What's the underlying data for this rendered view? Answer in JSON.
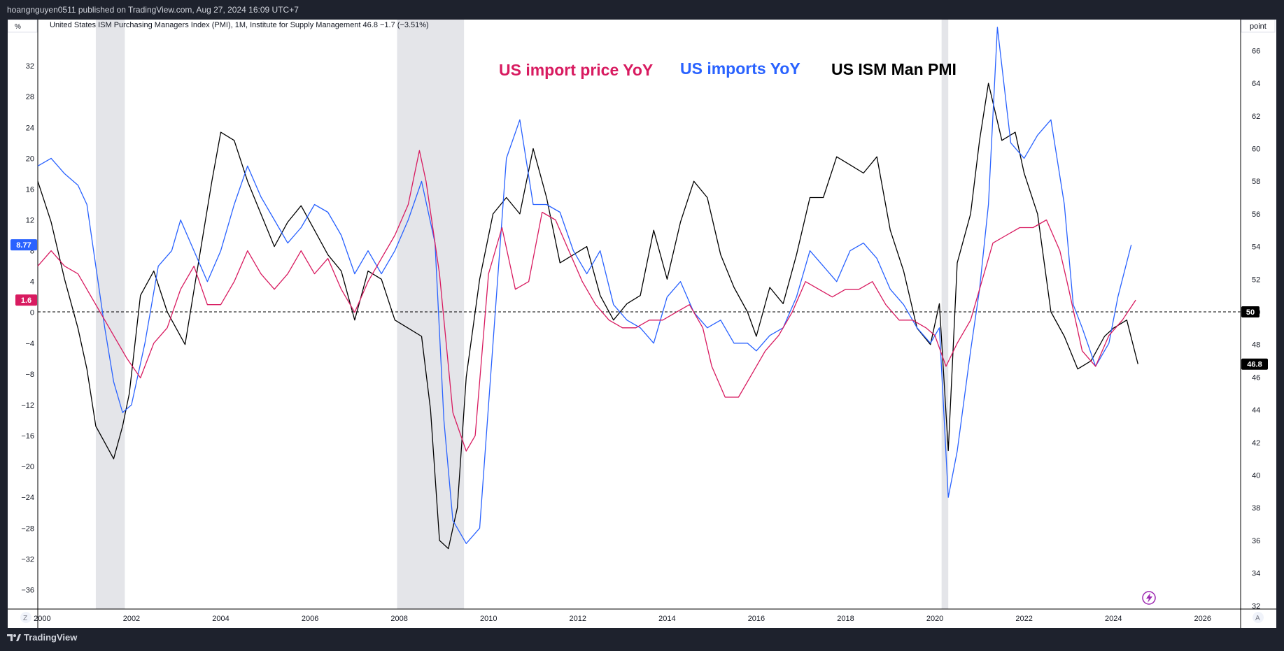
{
  "header": {
    "publisher_line": "hoangnguyen0511 published on TradingView.com, Aug 27, 2024 16:09 UTC+7",
    "legend_line": "United States ISM Purchasing Managers Index (PMI), 1M, Institute for Supply Management  46.8  −1.7 (−3.51%)",
    "left_unit_button": "%",
    "right_unit_button": "point",
    "log_button": "Z",
    "auto_button": "A"
  },
  "footer": {
    "brand": "TradingView"
  },
  "colors": {
    "pmi": "#000000",
    "imports": "#2962ff",
    "import_price": "#d81b60",
    "recession": "#e4e5e9"
  },
  "icons": {
    "brand": "tradingview-logo",
    "lightning": "lightning-icon"
  },
  "chart_data": {
    "type": "line",
    "title": "",
    "annotations": [
      {
        "text": "US import price YoY",
        "color": "#d81b60"
      },
      {
        "text": "US imports YoY",
        "color": "#2962ff"
      },
      {
        "text": "US ISM Man PMI",
        "color": "#000000"
      }
    ],
    "x_ticks": [
      "2000",
      "2002",
      "2004",
      "2006",
      "2008",
      "2010",
      "2012",
      "2014",
      "2016",
      "2018",
      "2020",
      "2022",
      "2024",
      "2026"
    ],
    "xlim": [
      1999.9,
      2026.85
    ],
    "left_axis": {
      "unit": "%",
      "ylim": [
        -38.5,
        38.0
      ],
      "ticks": [
        32,
        28,
        24,
        20,
        16,
        12,
        8,
        4,
        0,
        -4,
        -8,
        -12,
        -16,
        -20,
        -24,
        -28,
        -32,
        -36
      ]
    },
    "right_axis": {
      "unit": "point",
      "ylim": [
        31.8,
        67.9
      ],
      "ticks": [
        66,
        64,
        62,
        60,
        58,
        56,
        54,
        52,
        50,
        48,
        46,
        44,
        42,
        40,
        38,
        36,
        34,
        32
      ]
    },
    "reference_line": {
      "axis": "right",
      "value": 50,
      "label": "50"
    },
    "last_values": [
      {
        "label": "8.77",
        "axis": "left",
        "value": 8.77,
        "color": "#2962ff"
      },
      {
        "label": "1.6",
        "axis": "left",
        "value": 1.6,
        "color": "#d81b60"
      },
      {
        "label": "46.8",
        "axis": "right",
        "value": 46.8,
        "color": "#000000"
      }
    ],
    "recessions": [
      [
        2001.2,
        2001.85
      ],
      [
        2007.95,
        2009.45
      ],
      [
        2020.15,
        2020.3
      ]
    ],
    "series": [
      {
        "name": "US ISM Man PMI",
        "axis": "right",
        "color": "#000000",
        "x": [
          1999.9,
          2000.2,
          2000.5,
          2000.8,
          2001.0,
          2001.2,
          2001.4,
          2001.6,
          2001.8,
          2001.95,
          2002.2,
          2002.5,
          2002.8,
          2003.0,
          2003.2,
          2003.5,
          2003.8,
          2004.0,
          2004.3,
          2004.6,
          2004.9,
          2005.2,
          2005.5,
          2005.8,
          2006.1,
          2006.4,
          2006.7,
          2007.0,
          2007.3,
          2007.6,
          2007.9,
          2008.2,
          2008.5,
          2008.7,
          2008.9,
          2009.1,
          2009.3,
          2009.5,
          2009.8,
          2010.1,
          2010.4,
          2010.7,
          2011.0,
          2011.3,
          2011.6,
          2011.9,
          2012.2,
          2012.5,
          2012.8,
          2013.1,
          2013.4,
          2013.7,
          2014.0,
          2014.3,
          2014.6,
          2014.9,
          2015.2,
          2015.5,
          2015.8,
          2016.0,
          2016.3,
          2016.6,
          2016.9,
          2017.2,
          2017.5,
          2017.8,
          2018.1,
          2018.4,
          2018.7,
          2019.0,
          2019.3,
          2019.6,
          2019.9,
          2020.1,
          2020.3,
          2020.5,
          2020.8,
          2021.0,
          2021.2,
          2021.5,
          2021.8,
          2022.0,
          2022.3,
          2022.6,
          2022.9,
          2023.2,
          2023.5,
          2023.8,
          2024.0,
          2024.3,
          2024.55
        ],
        "y": [
          58.0,
          55.5,
          52.0,
          49.0,
          46.5,
          43.0,
          42.0,
          41.0,
          43.0,
          45.0,
          51.0,
          52.5,
          50.0,
          49.0,
          48.0,
          53.0,
          58.0,
          61.0,
          60.5,
          58.0,
          56.0,
          54.0,
          55.5,
          56.5,
          55.0,
          53.5,
          52.5,
          49.5,
          52.5,
          52.0,
          49.5,
          49.0,
          48.5,
          44.0,
          36.0,
          35.5,
          38.0,
          46.0,
          52.0,
          56.0,
          57.0,
          56.0,
          60.0,
          57.0,
          53.0,
          53.5,
          54.0,
          51.0,
          49.5,
          50.5,
          51.0,
          55.0,
          52.0,
          55.5,
          58.0,
          57.0,
          53.5,
          51.5,
          50.0,
          48.5,
          51.5,
          50.5,
          53.5,
          57.0,
          57.0,
          59.5,
          59.0,
          58.5,
          59.5,
          55.0,
          52.5,
          49.0,
          48.0,
          50.5,
          41.5,
          53.0,
          56.0,
          60.5,
          64.0,
          60.5,
          61.0,
          58.5,
          56.0,
          50.0,
          48.5,
          46.5,
          47.0,
          48.5,
          49.0,
          49.5,
          46.8
        ]
      },
      {
        "name": "US imports YoY",
        "axis": "left",
        "color": "#2962ff",
        "x": [
          1999.9,
          2000.2,
          2000.5,
          2000.8,
          2001.0,
          2001.2,
          2001.4,
          2001.6,
          2001.8,
          2002.0,
          2002.3,
          2002.6,
          2002.9,
          2003.1,
          2003.4,
          2003.7,
          2004.0,
          2004.3,
          2004.6,
          2004.9,
          2005.2,
          2005.5,
          2005.8,
          2006.1,
          2006.4,
          2006.7,
          2007.0,
          2007.3,
          2007.6,
          2007.9,
          2008.2,
          2008.5,
          2008.8,
          2009.0,
          2009.2,
          2009.5,
          2009.8,
          2010.0,
          2010.4,
          2010.7,
          2011.0,
          2011.3,
          2011.6,
          2011.9,
          2012.2,
          2012.5,
          2012.8,
          2013.1,
          2013.4,
          2013.7,
          2014.0,
          2014.3,
          2014.6,
          2014.9,
          2015.2,
          2015.5,
          2015.8,
          2016.0,
          2016.3,
          2016.6,
          2016.9,
          2017.2,
          2017.5,
          2017.8,
          2018.1,
          2018.4,
          2018.7,
          2019.0,
          2019.3,
          2019.6,
          2019.9,
          2020.1,
          2020.3,
          2020.5,
          2020.8,
          2021.0,
          2021.2,
          2021.4,
          2021.7,
          2022.0,
          2022.3,
          2022.6,
          2022.9,
          2023.1,
          2023.3,
          2023.6,
          2023.9,
          2024.1,
          2024.4
        ],
        "y": [
          19.0,
          20.0,
          18.0,
          16.5,
          14.0,
          6.0,
          -2.0,
          -9.0,
          -13.0,
          -12.0,
          -4.0,
          6.0,
          8.0,
          12.0,
          8.0,
          4.0,
          8.0,
          14.0,
          19.0,
          15.0,
          12.0,
          9.0,
          11.0,
          14.0,
          13.0,
          10.0,
          5.0,
          8.0,
          5.0,
          8.0,
          12.0,
          17.0,
          9.0,
          -14.0,
          -27.0,
          -30.0,
          -28.0,
          -12.0,
          20.0,
          25.0,
          14.0,
          14.0,
          13.0,
          8.0,
          5.0,
          8.0,
          1.0,
          -1.0,
          -2.0,
          -4.0,
          2.0,
          4.0,
          0.0,
          -2.0,
          -1.0,
          -4.0,
          -4.0,
          -5.0,
          -3.0,
          -2.0,
          2.0,
          8.0,
          6.0,
          4.0,
          8.0,
          9.0,
          7.0,
          3.0,
          1.0,
          -2.0,
          -4.0,
          -2.0,
          -24.0,
          -18.0,
          -5.0,
          3.0,
          14.0,
          37.0,
          22.0,
          20.0,
          23.0,
          25.0,
          14.0,
          1.0,
          -2.0,
          -7.0,
          -4.0,
          2.0,
          8.77
        ]
      },
      {
        "name": "US import price YoY",
        "axis": "left",
        "color": "#d81b60",
        "x": [
          1999.9,
          2000.2,
          2000.5,
          2000.8,
          2001.0,
          2001.3,
          2001.6,
          2001.9,
          2002.2,
          2002.5,
          2002.8,
          2003.1,
          2003.4,
          2003.7,
          2004.0,
          2004.3,
          2004.6,
          2004.9,
          2005.2,
          2005.5,
          2005.8,
          2006.1,
          2006.4,
          2006.7,
          2007.0,
          2007.3,
          2007.6,
          2007.9,
          2008.2,
          2008.45,
          2008.6,
          2008.9,
          2009.2,
          2009.5,
          2009.7,
          2010.0,
          2010.3,
          2010.6,
          2010.9,
          2011.2,
          2011.5,
          2011.8,
          2012.1,
          2012.4,
          2012.7,
          2013.0,
          2013.3,
          2013.6,
          2013.9,
          2014.2,
          2014.5,
          2014.8,
          2015.0,
          2015.3,
          2015.6,
          2015.9,
          2016.2,
          2016.5,
          2016.8,
          2017.1,
          2017.4,
          2017.7,
          2018.0,
          2018.3,
          2018.6,
          2018.9,
          2019.2,
          2019.5,
          2019.8,
          2020.0,
          2020.25,
          2020.5,
          2020.8,
          2021.0,
          2021.3,
          2021.6,
          2021.9,
          2022.2,
          2022.5,
          2022.8,
          2023.0,
          2023.3,
          2023.6,
          2023.9,
          2024.2,
          2024.5
        ],
        "y": [
          6.0,
          8.0,
          6.0,
          5.0,
          3.0,
          0.0,
          -3.0,
          -6.0,
          -8.5,
          -4.0,
          -2.0,
          3.0,
          6.0,
          1.0,
          1.0,
          4.0,
          8.0,
          5.0,
          3.0,
          5.0,
          8.0,
          5.0,
          7.0,
          3.0,
          0.0,
          4.0,
          7.0,
          10.0,
          14.0,
          21.0,
          17.0,
          5.0,
          -13.0,
          -18.0,
          -16.0,
          5.0,
          11.0,
          3.0,
          4.0,
          13.0,
          12.0,
          8.0,
          4.0,
          1.0,
          -1.0,
          -2.0,
          -2.0,
          -1.0,
          -1.0,
          0.0,
          1.0,
          -2.0,
          -7.0,
          -11.0,
          -11.0,
          -8.0,
          -5.0,
          -3.0,
          0.0,
          4.0,
          3.0,
          2.0,
          3.0,
          3.0,
          4.0,
          1.0,
          -1.0,
          -1.0,
          -2.0,
          -3.0,
          -7.0,
          -4.0,
          -1.0,
          3.0,
          9.0,
          10.0,
          11.0,
          11.0,
          12.0,
          8.0,
          3.0,
          -5.0,
          -7.0,
          -3.0,
          -1.0,
          1.6
        ]
      }
    ]
  }
}
